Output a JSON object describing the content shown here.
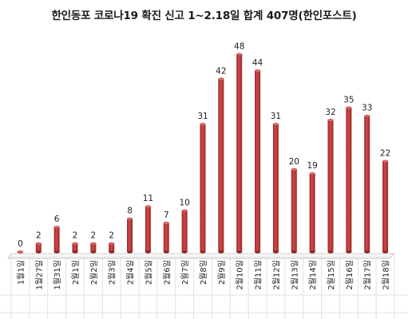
{
  "chart_data": {
    "type": "bar",
    "title": "한인동포 코로나19 확진 신고 1~2.18일 합계 407명(한인포스트)",
    "xlabel": "",
    "ylabel": "",
    "ylim": [
      0,
      50
    ],
    "grid": false,
    "legend": "none",
    "categories": [
      "1월1일",
      "1월27일",
      "1월31일",
      "2월1일",
      "2월2일",
      "2월3일",
      "2월4일",
      "2월5일",
      "2월6일",
      "2월7일",
      "2월8일",
      "2월9일",
      "2월10일",
      "2월11일",
      "2월12일",
      "2월13일",
      "2월14일",
      "2월15일",
      "2월16일",
      "2월17일",
      "2월18일"
    ],
    "values": [
      0,
      2,
      6,
      2,
      2,
      2,
      8,
      11,
      7,
      10,
      31,
      42,
      48,
      44,
      31,
      20,
      19,
      32,
      35,
      33,
      22
    ],
    "bar_color": "#c0393b"
  }
}
